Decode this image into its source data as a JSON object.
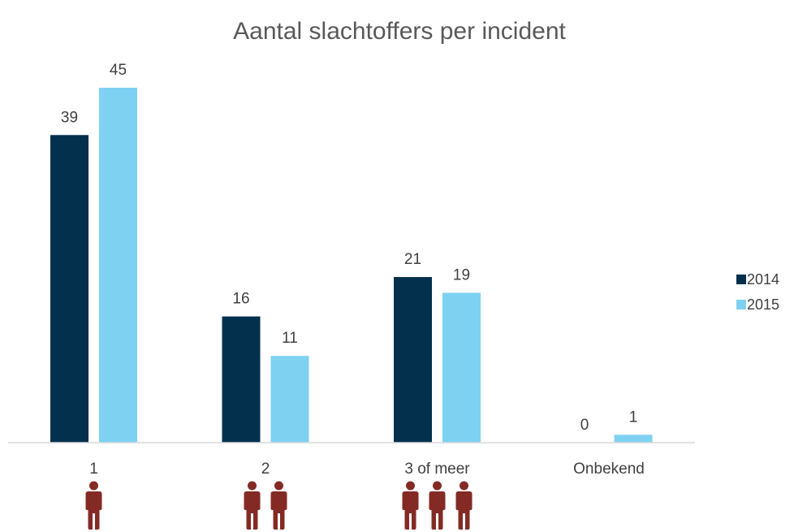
{
  "chart_data": {
    "type": "bar",
    "title": "Aantal slachtoffers per incident",
    "xlabel": "",
    "ylabel": "",
    "categories": [
      "1",
      "2",
      "3 of meer",
      "Onbekend"
    ],
    "icon_counts": [
      1,
      2,
      3,
      0
    ],
    "series": [
      {
        "name": "2014",
        "values": [
          39,
          16,
          21,
          0
        ],
        "color": "#03304d"
      },
      {
        "name": "2015",
        "values": [
          45,
          11,
          19,
          1
        ],
        "color": "#7fd1f2"
      }
    ],
    "ylim": [
      0,
      45
    ],
    "grid": false,
    "legend": "right",
    "data_labels": true,
    "person_icon": {
      "name": "person-icon",
      "color": "#842a24"
    }
  }
}
